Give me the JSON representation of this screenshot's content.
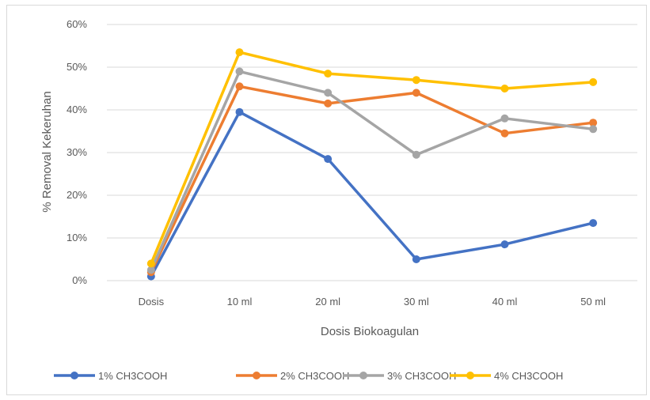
{
  "chart_data": {
    "type": "line",
    "title": "",
    "xlabel": "Dosis Biokoagulan",
    "ylabel": "% Removal Kekeruhan",
    "categories": [
      "Dosis",
      "10 ml",
      "20 ml",
      "30 ml",
      "40 ml",
      "50 ml"
    ],
    "y_ticks": [
      "0%",
      "10%",
      "20%",
      "30%",
      "40%",
      "50%",
      "60%"
    ],
    "ylim": [
      0,
      60
    ],
    "grid": true,
    "legend_position": "bottom",
    "series": [
      {
        "name": "1% CH3COOH",
        "color": "#4472C4",
        "values": [
          1,
          39.5,
          28.5,
          5,
          8.5,
          13.5
        ]
      },
      {
        "name": "2% CH3COOH",
        "color": "#ED7D31",
        "values": [
          2,
          45.5,
          41.5,
          44,
          34.5,
          37
        ]
      },
      {
        "name": "3% CH3COOH",
        "color": "#A5A5A5",
        "values": [
          2.5,
          49,
          44,
          29.5,
          38,
          35.5
        ]
      },
      {
        "name": "4% CH3COOH",
        "color": "#FFC000",
        "values": [
          4,
          53.5,
          48.5,
          47,
          45,
          46.5
        ]
      }
    ]
  }
}
